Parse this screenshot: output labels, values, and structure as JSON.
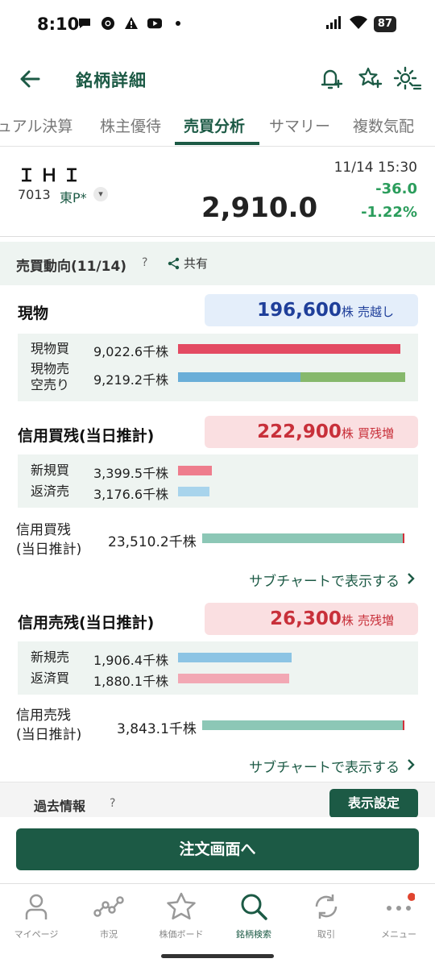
{
  "status": {
    "time": "8:10",
    "battery": "87"
  },
  "header": {
    "title": "銘柄詳細"
  },
  "tabs": [
    {
      "label": "ュアル決算"
    },
    {
      "label": "株主優待"
    },
    {
      "label": "売買分析"
    },
    {
      "label": "サマリー"
    },
    {
      "label": "複数気配"
    }
  ],
  "stock": {
    "name": "ＩＨＩ",
    "code": "7013",
    "market": "東P*",
    "datetime": "11/14 15:30",
    "price": "2,910.0",
    "change": "-36.0",
    "change_pct": "-1.22%"
  },
  "section": {
    "title": "売買動向(11/14)",
    "help": "?",
    "share_label": "共有"
  },
  "spot": {
    "title": "現物",
    "total": "196,600",
    "unit": "株",
    "status": "売越し",
    "rows": [
      {
        "label": "現物買",
        "value": "9,022.6千株",
        "fraction": 0.979
      },
      {
        "label": "現物売\n空売り",
        "value": "9,219.2千株",
        "fraction": 1.0,
        "split": 0.54
      }
    ]
  },
  "margin_buy": {
    "title": "信用買残(当日推計)",
    "total": "222,900",
    "unit": "株",
    "status": "買残増",
    "rows": [
      {
        "label": "新規買",
        "value": "3,399.5千株",
        "fraction": 0.15
      },
      {
        "label": "返済売",
        "value": "3,176.6千株",
        "fraction": 0.14
      }
    ],
    "balance_label": "信用買残\n(当日推計)",
    "balance_value": "23,510.2千株",
    "link": "サブチャートで表示する"
  },
  "margin_sell": {
    "title": "信用売残(当日推計)",
    "total": "26,300",
    "unit": "株",
    "status": "売残増",
    "rows": [
      {
        "label": "新規売",
        "value": "1,906.4千株",
        "fraction": 0.5
      },
      {
        "label": "返済買",
        "value": "1,880.1千株",
        "fraction": 0.49
      }
    ],
    "balance_label": "信用売残\n(当日推計)",
    "balance_value": "3,843.1千株",
    "link": "サブチャートで表示する"
  },
  "past": {
    "title": "過去情報",
    "help": "?",
    "button": "表示設定"
  },
  "order_button": "注文画面へ",
  "nav": [
    {
      "label": "マイページ",
      "icon": "person-icon"
    },
    {
      "label": "市況",
      "icon": "market-icon"
    },
    {
      "label": "株価ボード",
      "icon": "star-icon"
    },
    {
      "label": "銘柄検索",
      "icon": "search-icon"
    },
    {
      "label": "取引",
      "icon": "trade-icon"
    },
    {
      "label": "メニュー",
      "icon": "menu-icon"
    }
  ],
  "colors": {
    "brand": "#1c5a45",
    "down": "#2b9d5c",
    "buy_bar": "#e34a62",
    "sell_bar": "#6aaed8",
    "short_bar": "#86b86c",
    "balance_bar": "#8cc7b6"
  }
}
